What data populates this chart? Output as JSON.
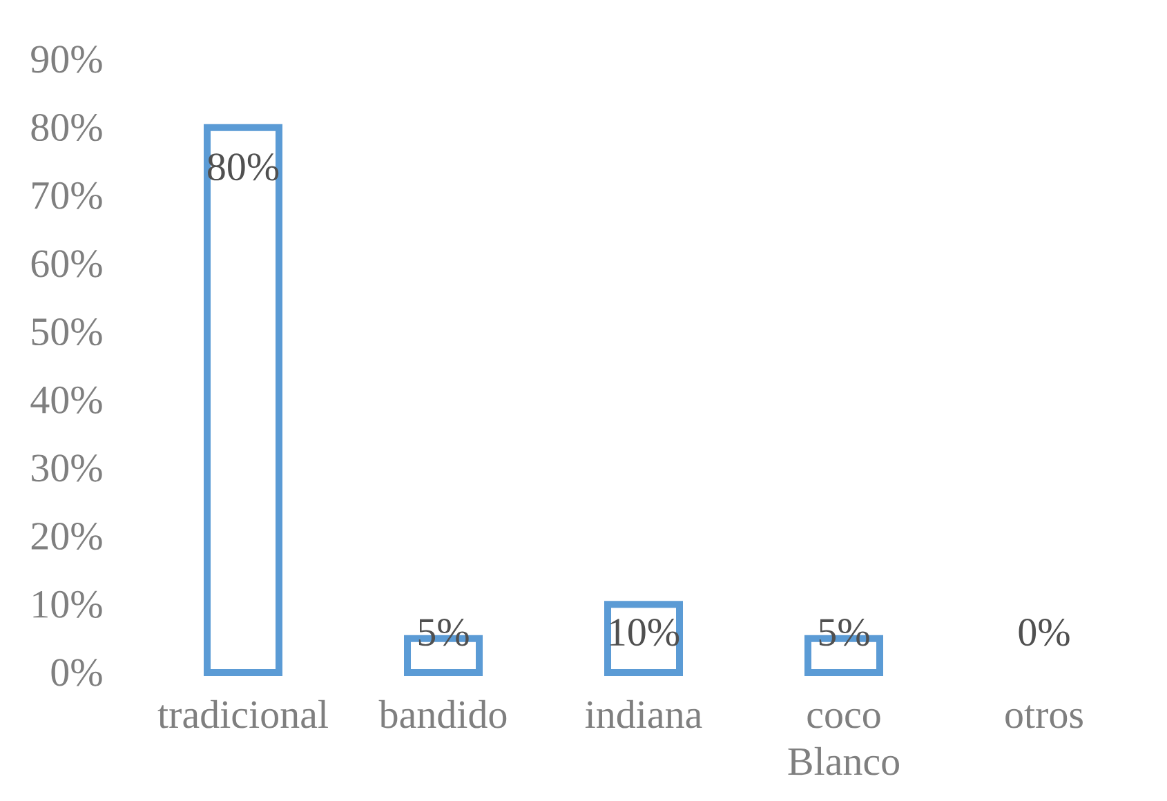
{
  "chart_data": {
    "type": "bar",
    "categories": [
      "tradicional",
      "bandido",
      "indiana",
      "coco Blanco",
      "otros"
    ],
    "values": [
      80,
      5,
      10,
      5,
      0
    ],
    "color": "#5b9bd5",
    "value_labels": [
      "80%",
      "5%",
      "10%",
      "5%",
      "0%"
    ],
    "ylim": [
      0,
      90
    ],
    "yticks": [
      {
        "value": 0,
        "label": "0%"
      },
      {
        "value": 10,
        "label": "10%"
      },
      {
        "value": 20,
        "label": "20%"
      },
      {
        "value": 30,
        "label": "30%"
      },
      {
        "value": 40,
        "label": "40%"
      },
      {
        "value": 50,
        "label": "50%"
      },
      {
        "value": 60,
        "label": "60%"
      },
      {
        "value": 70,
        "label": "70%"
      },
      {
        "value": 80,
        "label": "80%"
      },
      {
        "value": 90,
        "label": "90%"
      }
    ]
  }
}
